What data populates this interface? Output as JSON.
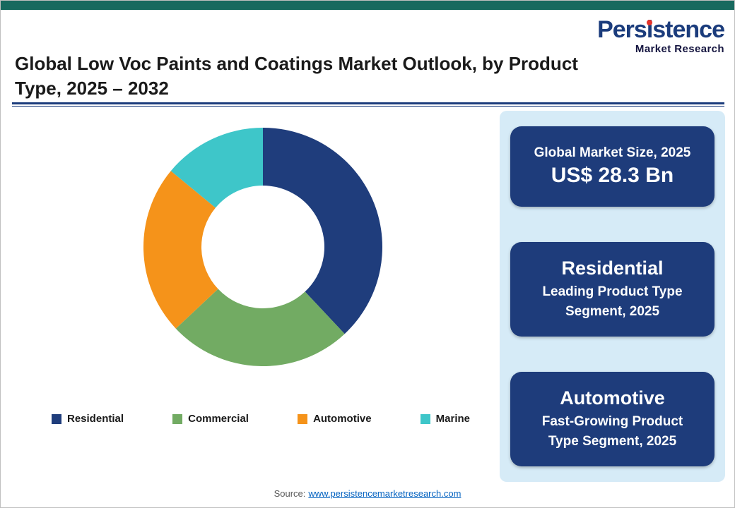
{
  "logo": {
    "name_pre": "Pers",
    "name_i": "i",
    "name_post": "stence",
    "subtitle": "Market Research"
  },
  "header": {
    "title_line1": "Global Low Voc Paints and Coatings Market Outlook, by Product",
    "title_line2": "Type, 2025 – 2032"
  },
  "chart_data": {
    "type": "pie",
    "donut": true,
    "title": "Global Low Voc Paints and Coatings Market Outlook, by Product Type, 2025 – 2032",
    "categories": [
      "Residential",
      "Commercial",
      "Automotive",
      "Marine"
    ],
    "values": [
      38,
      25,
      23,
      14
    ],
    "colors": [
      "#1F3D7C",
      "#72AB63",
      "#F5931A",
      "#3EC6C9"
    ],
    "start_angle_deg": 0,
    "direction": "clockwise",
    "legend_position": "bottom"
  },
  "info_panel": {
    "cards": [
      {
        "label": "Global Market Size, 2025",
        "value": "US$ 28.3 Bn"
      },
      {
        "title": "Residential",
        "subtitle": "Leading Product Type Segment, 2025"
      },
      {
        "title": "Automotive",
        "subtitle": "Fast-Growing Product Type Segment, 2025"
      }
    ]
  },
  "footer": {
    "source_label": "Source:",
    "source_link": "www.persistencemarketresearch.com"
  },
  "colors": {
    "top_bar": "#17695E",
    "brand_navy": "#1B3C7C",
    "brand_red_dot": "#E6332A",
    "panel_background": "#D6EBF7",
    "card_background": "#1E3C7B",
    "link_blue": "#0563C1"
  }
}
